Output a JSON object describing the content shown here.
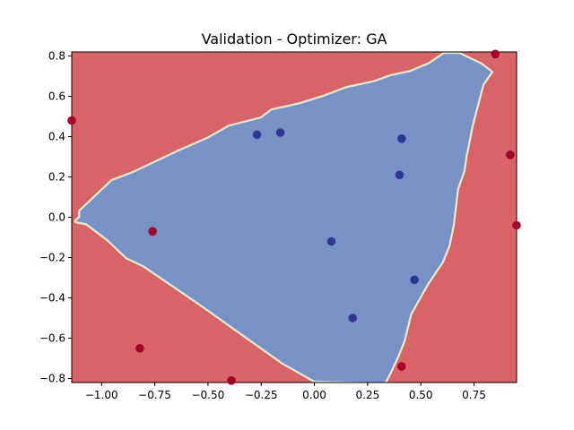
{
  "chart_data": {
    "type": "scatter",
    "title": "Validation - Optimizer: GA",
    "xlabel": "",
    "ylabel": "",
    "xlim": [
      -1.14,
      0.95
    ],
    "ylim": [
      -0.82,
      0.82
    ],
    "grid": false,
    "xticks": [
      -1.0,
      -0.75,
      -0.5,
      -0.25,
      0.0,
      0.25,
      0.5,
      0.75
    ],
    "yticks": [
      -0.8,
      -0.6,
      -0.4,
      -0.2,
      0.0,
      0.2,
      0.4,
      0.6,
      0.8
    ],
    "xtick_labels": [
      "−1.00",
      "−0.75",
      "−0.50",
      "−0.25",
      "0.00",
      "0.25",
      "0.50",
      "0.75"
    ],
    "ytick_labels": [
      "−0.8",
      "−0.6",
      "−0.4",
      "−0.2",
      "0.0",
      "0.2",
      "0.4",
      "0.6",
      "0.8"
    ],
    "colors": {
      "background_region": "#d96467",
      "decision_region": "#7793c5",
      "boundary_outer": "#fef1a8",
      "boundary_inner": "#cfe6ee",
      "class_0": "#a50026",
      "class_1": "#313695"
    },
    "decision_region_polygon": [
      [
        -1.1,
        0.0
      ],
      [
        -1.12,
        -0.02
      ],
      [
        -1.07,
        -0.03
      ],
      [
        -0.97,
        -0.11
      ],
      [
        -0.88,
        -0.2
      ],
      [
        -0.8,
        -0.24
      ],
      [
        -0.55,
        -0.42
      ],
      [
        -0.35,
        -0.57
      ],
      [
        -0.15,
        -0.72
      ],
      [
        0.0,
        -0.81
      ],
      [
        0.33,
        -0.82
      ],
      [
        0.35,
        -0.78
      ],
      [
        0.39,
        -0.69
      ],
      [
        0.42,
        -0.61
      ],
      [
        0.45,
        -0.48
      ],
      [
        0.53,
        -0.33
      ],
      [
        0.6,
        -0.22
      ],
      [
        0.63,
        -0.14
      ],
      [
        0.65,
        -0.04
      ],
      [
        0.66,
        0.05
      ],
      [
        0.67,
        0.14
      ],
      [
        0.7,
        0.23
      ],
      [
        0.71,
        0.3
      ],
      [
        0.74,
        0.46
      ],
      [
        0.77,
        0.58
      ],
      [
        0.79,
        0.66
      ],
      [
        0.83,
        0.72
      ],
      [
        0.78,
        0.76
      ],
      [
        0.72,
        0.79
      ],
      [
        0.68,
        0.81
      ],
      [
        0.61,
        0.81
      ],
      [
        0.54,
        0.76
      ],
      [
        0.45,
        0.72
      ],
      [
        0.36,
        0.7
      ],
      [
        0.28,
        0.67
      ],
      [
        0.15,
        0.64
      ],
      [
        0.05,
        0.6
      ],
      [
        -0.07,
        0.56
      ],
      [
        -0.2,
        0.53
      ],
      [
        -0.25,
        0.49
      ],
      [
        -0.4,
        0.45
      ],
      [
        -0.5,
        0.39
      ],
      [
        -0.63,
        0.33
      ],
      [
        -0.73,
        0.28
      ],
      [
        -0.85,
        0.22
      ],
      [
        -0.95,
        0.18
      ],
      [
        -1.0,
        0.13
      ],
      [
        -1.05,
        0.08
      ],
      [
        -1.1,
        0.03
      ]
    ],
    "series": [
      {
        "class": 0,
        "points": [
          [
            -1.14,
            0.48
          ],
          [
            -0.76,
            -0.07
          ],
          [
            -0.82,
            -0.65
          ],
          [
            -0.39,
            -0.81
          ],
          [
            0.85,
            0.81
          ],
          [
            0.92,
            0.31
          ],
          [
            0.95,
            -0.04
          ],
          [
            0.41,
            -0.74
          ]
        ]
      },
      {
        "class": 1,
        "points": [
          [
            -0.27,
            0.41
          ],
          [
            -0.16,
            0.42
          ],
          [
            0.41,
            0.39
          ],
          [
            0.4,
            0.21
          ],
          [
            0.08,
            -0.12
          ],
          [
            0.47,
            -0.31
          ],
          [
            0.18,
            -0.5
          ]
        ]
      }
    ]
  }
}
